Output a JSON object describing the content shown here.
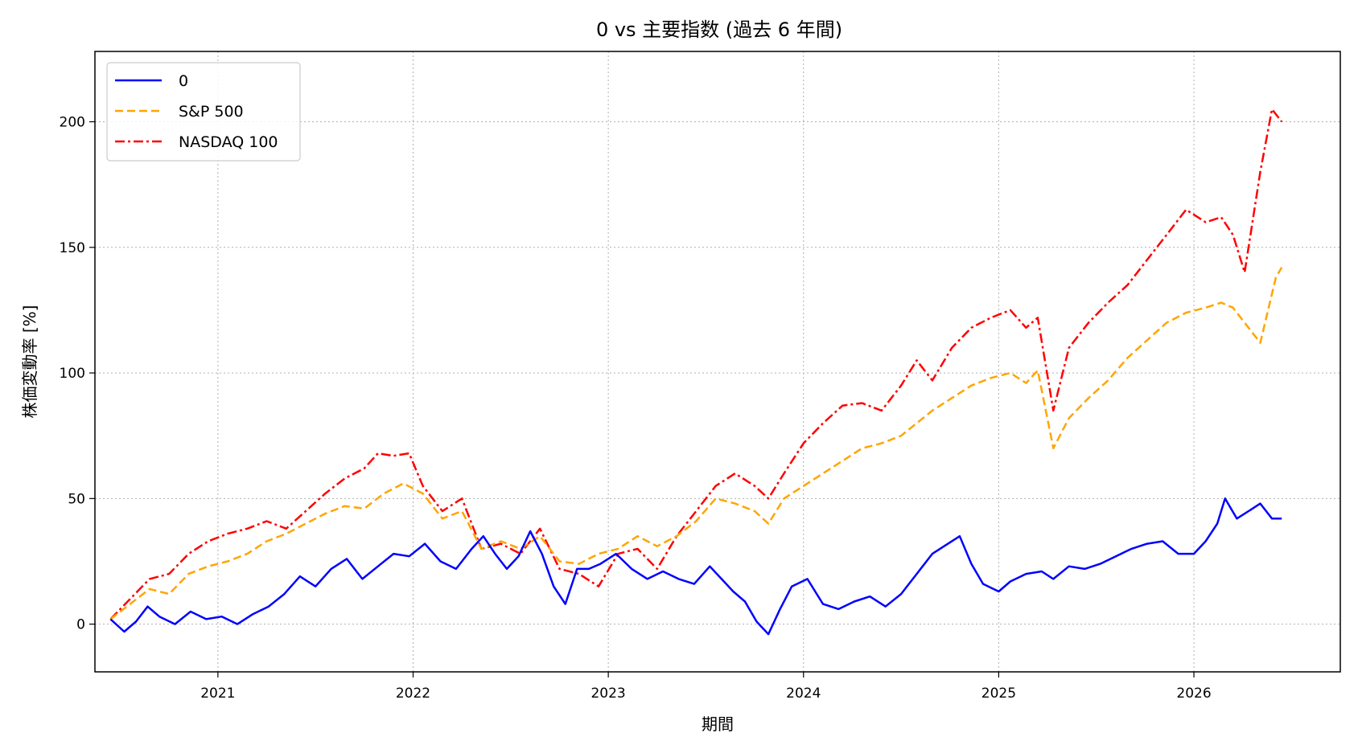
{
  "chart_data": {
    "type": "line",
    "title": "0 vs 主要指数 (過去 6 年間)",
    "xlabel": "期間",
    "ylabel": "株価変動率 [%]",
    "xlim": [
      2020.37,
      2026.75
    ],
    "ylim": [
      -19,
      228
    ],
    "x_ticks": [
      2021,
      2022,
      2023,
      2024,
      2025,
      2026
    ],
    "x_tick_labels": [
      "2021",
      "2022",
      "2023",
      "2024",
      "2025",
      "2026"
    ],
    "y_ticks": [
      0,
      50,
      100,
      150,
      200
    ],
    "y_tick_labels": [
      "0",
      "50",
      "100",
      "150",
      "200"
    ],
    "grid": true,
    "legend_position": "top-left",
    "series": [
      {
        "name": "0",
        "color": "#0000ff",
        "style": "solid",
        "x": [
          2020.45,
          2020.52,
          2020.58,
          2020.64,
          2020.7,
          2020.78,
          2020.86,
          2020.94,
          2021.02,
          2021.1,
          2021.18,
          2021.26,
          2021.34,
          2021.42,
          2021.5,
          2021.58,
          2021.66,
          2021.74,
          2021.82,
          2021.9,
          2021.98,
          2022.06,
          2022.14,
          2022.22,
          2022.3,
          2022.36,
          2022.42,
          2022.48,
          2022.54,
          2022.6,
          2022.66,
          2022.72,
          2022.78,
          2022.84,
          2022.9,
          2022.96,
          2023.04,
          2023.12,
          2023.2,
          2023.28,
          2023.36,
          2023.44,
          2023.52,
          2023.58,
          2023.64,
          2023.7,
          2023.76,
          2023.82,
          2023.88,
          2023.94,
          2024.02,
          2024.1,
          2024.18,
          2024.26,
          2024.34,
          2024.42,
          2024.5,
          2024.58,
          2024.66,
          2024.74,
          2024.8,
          2024.86,
          2024.92,
          2025.0,
          2025.06,
          2025.14,
          2025.22,
          2025.28,
          2025.36,
          2025.44,
          2025.52,
          2025.6,
          2025.68,
          2025.76,
          2025.84,
          2025.92,
          2026.0,
          2026.06,
          2026.12,
          2026.16,
          2026.22,
          2026.28,
          2026.34,
          2026.4,
          2026.45
        ],
        "y": [
          2,
          -3,
          1,
          7,
          3,
          0,
          5,
          2,
          3,
          0,
          4,
          7,
          12,
          19,
          15,
          22,
          26,
          18,
          23,
          28,
          27,
          32,
          25,
          22,
          30,
          35,
          28,
          22,
          27,
          37,
          28,
          15,
          8,
          22,
          22,
          24,
          28,
          22,
          18,
          21,
          18,
          16,
          23,
          18,
          13,
          9,
          1,
          -4,
          6,
          15,
          18,
          8,
          6,
          9,
          11,
          7,
          12,
          20,
          28,
          32,
          35,
          24,
          16,
          13,
          17,
          20,
          21,
          18,
          23,
          22,
          24,
          27,
          30,
          32,
          33,
          28,
          28,
          33,
          40,
          50,
          42,
          45,
          48,
          42,
          42
        ]
      },
      {
        "name": "S&P 500",
        "color": "#ffa500",
        "style": "dashed",
        "x": [
          2020.45,
          2020.55,
          2020.65,
          2020.75,
          2020.85,
          2020.95,
          2021.05,
          2021.15,
          2021.25,
          2021.35,
          2021.45,
          2021.55,
          2021.65,
          2021.75,
          2021.85,
          2021.95,
          2022.05,
          2022.15,
          2022.25,
          2022.35,
          2022.45,
          2022.55,
          2022.65,
          2022.75,
          2022.85,
          2022.95,
          2023.05,
          2023.15,
          2023.25,
          2023.35,
          2023.45,
          2023.55,
          2023.65,
          2023.75,
          2023.82,
          2023.9,
          2024.0,
          2024.1,
          2024.2,
          2024.3,
          2024.4,
          2024.5,
          2024.58,
          2024.66,
          2024.76,
          2024.86,
          2024.96,
          2025.06,
          2025.14,
          2025.2,
          2025.28,
          2025.36,
          2025.46,
          2025.56,
          2025.66,
          2025.76,
          2025.86,
          2025.96,
          2026.06,
          2026.14,
          2026.2,
          2026.26,
          2026.34,
          2026.42,
          2026.45
        ],
        "y": [
          2,
          8,
          14,
          12,
          20,
          23,
          25,
          28,
          33,
          36,
          40,
          44,
          47,
          46,
          52,
          56,
          52,
          42,
          45,
          30,
          33,
          30,
          35,
          25,
          24,
          28,
          30,
          35,
          31,
          35,
          41,
          50,
          48,
          45,
          40,
          50,
          55,
          60,
          65,
          70,
          72,
          75,
          80,
          85,
          90,
          95,
          98,
          100,
          96,
          101,
          70,
          82,
          90,
          97,
          106,
          113,
          120,
          124,
          126,
          128,
          126,
          120,
          112,
          138,
          142
        ]
      },
      {
        "name": "NASDAQ 100",
        "color": "#ff0000",
        "style": "dashdot",
        "x": [
          2020.45,
          2020.55,
          2020.65,
          2020.75,
          2020.85,
          2020.95,
          2021.05,
          2021.15,
          2021.25,
          2021.35,
          2021.45,
          2021.55,
          2021.65,
          2021.75,
          2021.82,
          2021.9,
          2021.98,
          2022.05,
          2022.15,
          2022.25,
          2022.35,
          2022.45,
          2022.55,
          2022.65,
          2022.75,
          2022.85,
          2022.95,
          2023.05,
          2023.15,
          2023.25,
          2023.35,
          2023.45,
          2023.55,
          2023.65,
          2023.75,
          2023.82,
          2023.9,
          2024.0,
          2024.1,
          2024.2,
          2024.3,
          2024.4,
          2024.5,
          2024.58,
          2024.66,
          2024.76,
          2024.86,
          2024.96,
          2025.06,
          2025.14,
          2025.2,
          2025.28,
          2025.36,
          2025.46,
          2025.56,
          2025.66,
          2025.76,
          2025.86,
          2025.96,
          2026.06,
          2026.14,
          2026.2,
          2026.26,
          2026.34,
          2026.4,
          2026.45
        ],
        "y": [
          2,
          10,
          18,
          20,
          28,
          33,
          36,
          38,
          41,
          38,
          45,
          52,
          58,
          62,
          68,
          67,
          68,
          55,
          45,
          50,
          30,
          32,
          28,
          38,
          22,
          20,
          15,
          28,
          30,
          22,
          35,
          45,
          55,
          60,
          55,
          50,
          60,
          72,
          80,
          87,
          88,
          85,
          95,
          105,
          97,
          110,
          118,
          122,
          125,
          118,
          122,
          85,
          110,
          120,
          128,
          135,
          145,
          155,
          165,
          160,
          162,
          155,
          140,
          180,
          205,
          200
        ]
      }
    ]
  }
}
